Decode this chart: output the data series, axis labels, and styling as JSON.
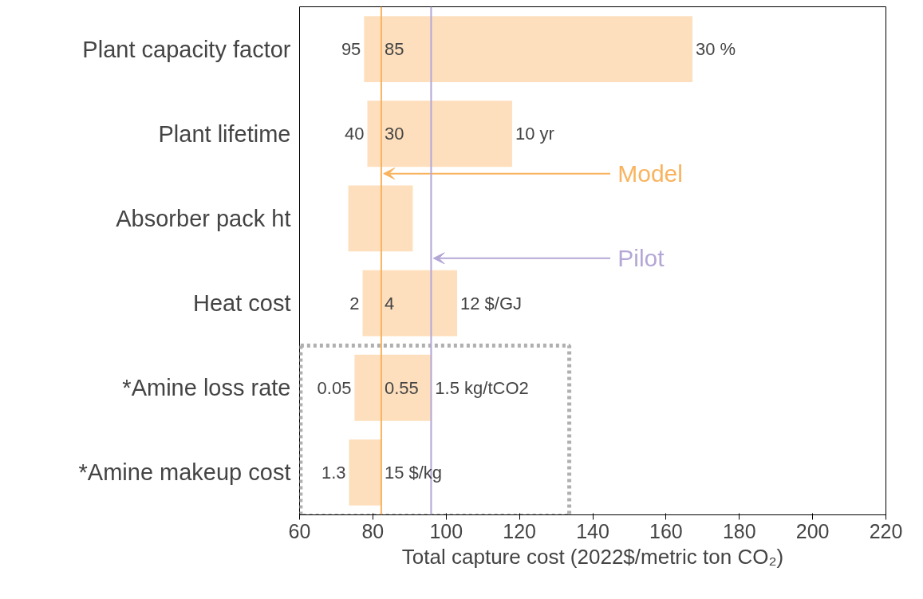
{
  "chart_data": {
    "type": "bar",
    "orientation": "horizontal",
    "xlabel": "Total capture cost (2022$/metric ton CO₂)",
    "categories": [
      "Plant capacity factor",
      "Plant lifetime",
      "Absorber pack ht",
      "Heat cost",
      "*Amine loss rate",
      "*Amine makeup cost"
    ],
    "base": [
      77.6,
      78.5,
      73.3,
      77.2,
      75.0,
      73.5
    ],
    "values": [
      89.6,
      39.5,
      17.6,
      25.8,
      21.1,
      8.8
    ],
    "color": "#fddfbd",
    "xlim": [
      60,
      220
    ],
    "xticks": [
      60,
      80,
      100,
      120,
      140,
      160,
      180,
      200,
      220
    ],
    "grid": false,
    "tick_labels": "x",
    "ref_lines": [
      {
        "axis": "x",
        "value": 82.3,
        "label": "Model",
        "color": "#f9b35e"
      },
      {
        "axis": "x",
        "value": 95.9,
        "label": "Pilot",
        "color": "#b4a7d6"
      }
    ],
    "annotations": [
      {
        "text": "95",
        "x": 77.6,
        "y": "Plant capacity factor"
      },
      {
        "text": "85",
        "x": 82.3,
        "y": "Plant capacity factor"
      },
      {
        "text": "30 %",
        "x": 167.2,
        "y": "Plant capacity factor"
      },
      {
        "text": "40",
        "x": 78.5,
        "y": "Plant lifetime"
      },
      {
        "text": "30",
        "x": 82.3,
        "y": "Plant lifetime"
      },
      {
        "text": "10 yr",
        "x": 118.0,
        "y": "Plant lifetime"
      },
      {
        "text": "2",
        "x": 77.2,
        "y": "Heat cost"
      },
      {
        "text": "4",
        "x": 82.3,
        "y": "Heat cost"
      },
      {
        "text": "12 $/GJ",
        "x": 103.0,
        "y": "Heat cost"
      },
      {
        "text": "0.05",
        "x": 75.0,
        "y": "*Amine loss rate"
      },
      {
        "text": "0.55",
        "x": 82.3,
        "y": "*Amine loss rate"
      },
      {
        "text": "1.5 kg/tCO2",
        "x": 96.1,
        "y": "*Amine loss rate"
      },
      {
        "text": "1.3",
        "x": 73.5,
        "y": "*Amine makeup cost"
      },
      {
        "text": "15 $/kg",
        "x": 82.3,
        "y": "*Amine makeup cost"
      }
    ]
  }
}
